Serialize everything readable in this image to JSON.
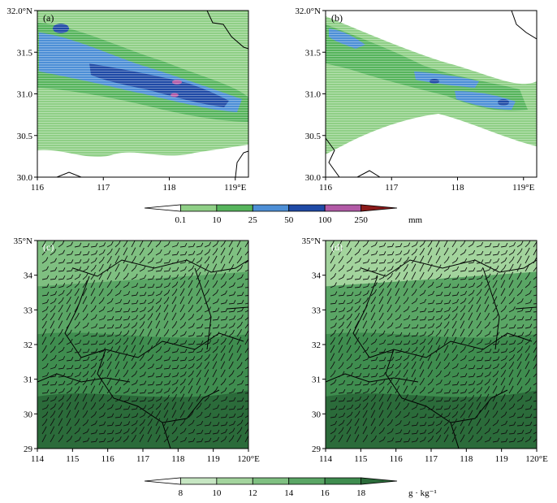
{
  "colors": {
    "precip": [
      "#ffffff",
      "#8fcf86",
      "#56b45c",
      "#4d8fd6",
      "#1f4aa6",
      "#b25aa6",
      "#8b1a1a"
    ],
    "humidity": [
      "#ffffff",
      "#c6e6c2",
      "#a3d49d",
      "#7fc081",
      "#5aa665",
      "#3f8d4f",
      "#2b6b3a"
    ],
    "boundary": "#000000"
  },
  "panels": [
    {
      "label": "(a)",
      "xticks": [
        "116",
        "117",
        "118",
        "119°E"
      ],
      "yticks": [
        "30.0",
        "30.5",
        "31.0",
        "31.5",
        "32.0°N"
      ]
    },
    {
      "label": "(b)",
      "xticks": [
        "116",
        "117",
        "118",
        "119°E"
      ],
      "yticks": [
        "30.0",
        "30.5",
        "31.0",
        "31.5",
        "32.0°N"
      ]
    },
    {
      "label": "(c)",
      "xticks": [
        "114",
        "115",
        "116",
        "117",
        "118",
        "119",
        "120°E"
      ],
      "yticks": [
        "29",
        "30",
        "31",
        "32",
        "33",
        "34",
        "35°N"
      ]
    },
    {
      "label": "(d)",
      "xticks": [
        "114",
        "115",
        "116",
        "117",
        "118",
        "119",
        "120°E"
      ],
      "yticks": [
        "29",
        "30",
        "31",
        "32",
        "33",
        "34",
        "35°N"
      ]
    }
  ],
  "colorbars": [
    {
      "levels": [
        "0.1",
        "10",
        "25",
        "50",
        "100",
        "250"
      ],
      "unit": "mm"
    },
    {
      "levels": [
        "8",
        "10",
        "12",
        "14",
        "16",
        "18"
      ],
      "unit": "g · kg⁻¹"
    }
  ],
  "chart_data": [
    {
      "type": "heatmap",
      "panel": "(a)",
      "variable": "precipitation",
      "unit": "mm",
      "xlim": [
        116,
        119.2
      ],
      "ylim": [
        30.0,
        32.0
      ],
      "levels": [
        0.1,
        10,
        25,
        50,
        100,
        250
      ],
      "max_region": {
        "lon": 118.0,
        "lat": 31.1,
        "level": ">=100"
      },
      "band_axis": [
        [
          116.0,
          31.65
        ],
        [
          117.0,
          31.35
        ],
        [
          118.0,
          31.15
        ],
        [
          118.8,
          30.95
        ]
      ]
    },
    {
      "type": "heatmap",
      "panel": "(b)",
      "variable": "precipitation",
      "unit": "mm",
      "xlim": [
        116,
        119.2
      ],
      "ylim": [
        30.0,
        32.0
      ],
      "levels": [
        0.1,
        10,
        25,
        50,
        100,
        250
      ],
      "max_region": {
        "lon": 118.6,
        "lat": 30.95,
        "level": "50-100"
      },
      "band_axis": [
        [
          116.2,
          31.75
        ],
        [
          117.0,
          31.5
        ],
        [
          118.0,
          31.25
        ],
        [
          118.6,
          30.95
        ]
      ]
    },
    {
      "type": "heatmap",
      "panel": "(c)",
      "variable": "specific humidity with wind barbs",
      "unit": "g · kg⁻¹",
      "xlim": [
        114,
        120
      ],
      "ylim": [
        29,
        35
      ],
      "levels": [
        8,
        10,
        12,
        14,
        16,
        18
      ],
      "gradient": [
        [
          29,
          17
        ],
        [
          31,
          16
        ],
        [
          32,
          15
        ],
        [
          33,
          14
        ],
        [
          34,
          13
        ],
        [
          35,
          12
        ]
      ]
    },
    {
      "type": "heatmap",
      "panel": "(d)",
      "variable": "specific humidity with wind barbs",
      "unit": "g · kg⁻¹",
      "xlim": [
        114,
        120
      ],
      "ylim": [
        29,
        35
      ],
      "levels": [
        8,
        10,
        12,
        14,
        16,
        18
      ],
      "gradient": [
        [
          29,
          17
        ],
        [
          31,
          16
        ],
        [
          32,
          15
        ],
        [
          33,
          14
        ],
        [
          34,
          13
        ],
        [
          35,
          11
        ]
      ]
    }
  ]
}
